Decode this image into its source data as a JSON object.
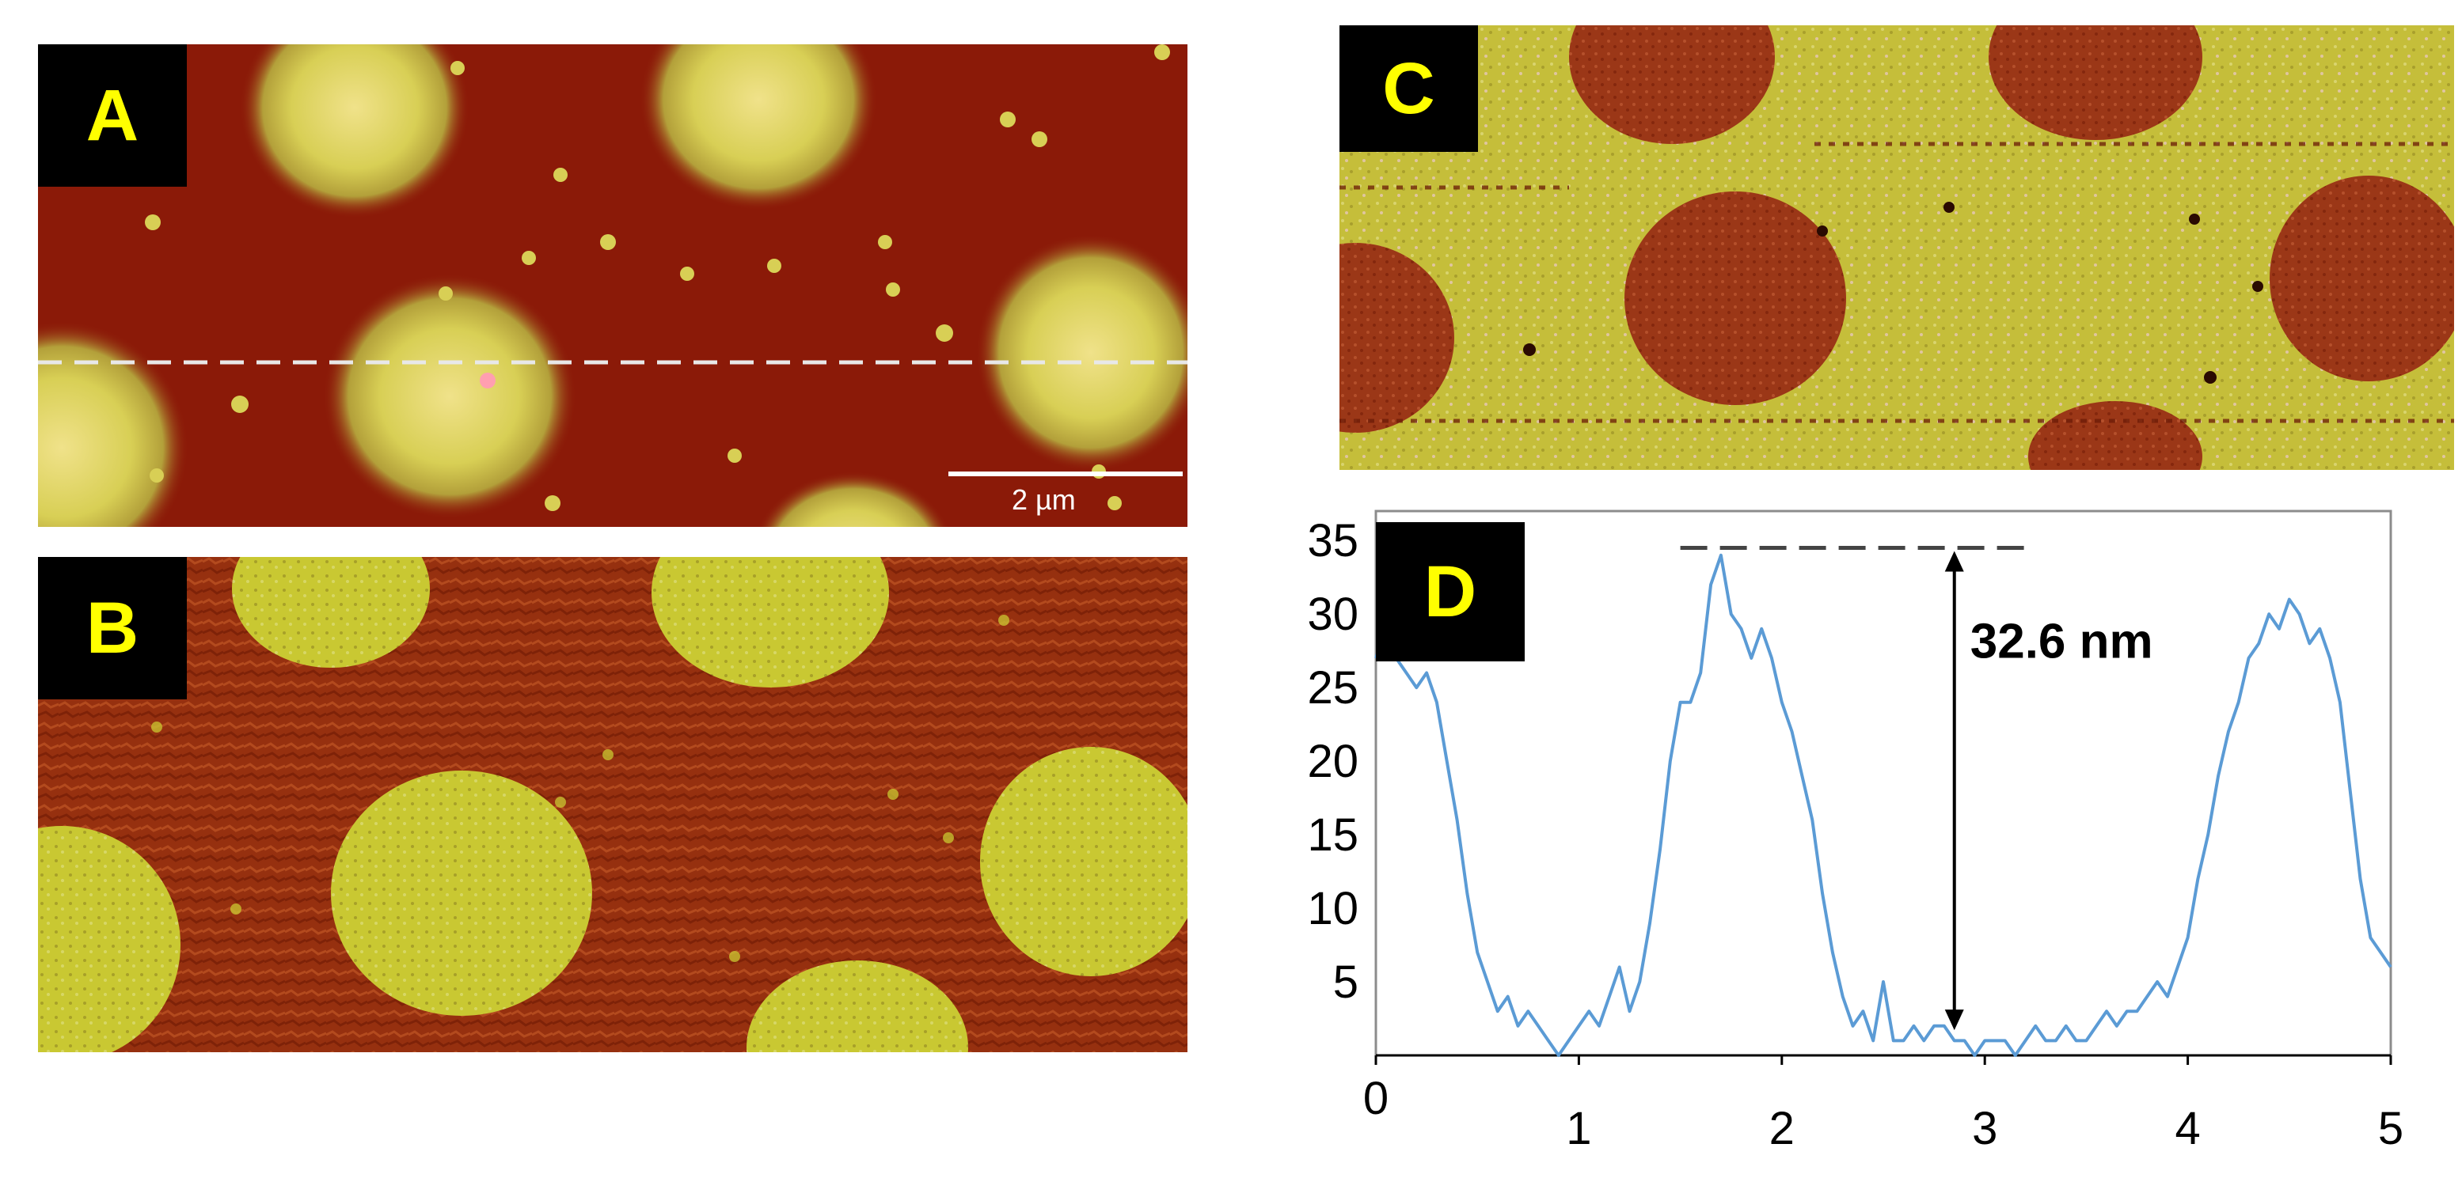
{
  "figure": {
    "panels": {
      "A": {
        "label": "A",
        "scale_bar": "2 µm"
      },
      "B": {
        "label": "B"
      },
      "C": {
        "label": "C"
      },
      "D": {
        "label": "D"
      }
    },
    "colors": {
      "substrate_dark": "#8b1a08",
      "domain_yellow": "#c9c832",
      "phase_dark": "#96300f",
      "line_blue": "#5b9bd5",
      "label_text": "#ffff00"
    }
  },
  "chart_data": {
    "type": "line",
    "title": "",
    "xlabel": "",
    "ylabel": "",
    "xlim": [
      0,
      5
    ],
    "ylim": [
      0,
      37
    ],
    "xticks": [
      0,
      1,
      2,
      3,
      4,
      5
    ],
    "yticks": [
      5,
      10,
      15,
      20,
      25,
      30,
      35
    ],
    "grid": false,
    "annotation": {
      "text": "32.6 nm",
      "top_value": 34.5,
      "bottom_value": 1.5,
      "x": 2.85
    },
    "series": [
      {
        "color": "#5b9bd5",
        "x": [
          0,
          0.05,
          0.1,
          0.15,
          0.2,
          0.25,
          0.3,
          0.35,
          0.4,
          0.45,
          0.5,
          0.55,
          0.6,
          0.65,
          0.7,
          0.75,
          0.8,
          0.85,
          0.9,
          0.95,
          1.0,
          1.05,
          1.1,
          1.15,
          1.2,
          1.25,
          1.3,
          1.35,
          1.4,
          1.45,
          1.5,
          1.55,
          1.6,
          1.65,
          1.7,
          1.75,
          1.8,
          1.85,
          1.9,
          1.95,
          2.0,
          2.05,
          2.1,
          2.15,
          2.2,
          2.25,
          2.3,
          2.35,
          2.4,
          2.45,
          2.5,
          2.55,
          2.6,
          2.65,
          2.7,
          2.75,
          2.8,
          2.85,
          2.9,
          2.95,
          3.0,
          3.05,
          3.1,
          3.15,
          3.2,
          3.25,
          3.3,
          3.35,
          3.4,
          3.45,
          3.5,
          3.55,
          3.6,
          3.65,
          3.7,
          3.75,
          3.8,
          3.85,
          3.9,
          3.95,
          4.0,
          4.05,
          4.1,
          4.15,
          4.2,
          4.25,
          4.3,
          4.35,
          4.4,
          4.45,
          4.5,
          4.55,
          4.6,
          4.65,
          4.7,
          4.75,
          4.8,
          4.85,
          4.9,
          4.95,
          5.0
        ],
        "y": [
          27,
          29,
          27,
          26,
          25,
          26,
          24,
          20,
          16,
          11,
          7,
          5,
          3,
          4,
          2,
          3,
          2,
          1,
          0,
          1,
          2,
          3,
          2,
          4,
          6,
          3,
          5,
          9,
          14,
          20,
          24,
          24,
          26,
          32,
          34,
          30,
          29,
          27,
          29,
          27,
          24,
          22,
          19,
          16,
          11,
          7,
          4,
          2,
          3,
          1,
          5,
          1,
          1,
          2,
          1,
          2,
          2,
          1,
          1,
          0,
          1,
          1,
          1,
          0,
          1,
          2,
          1,
          1,
          2,
          1,
          1,
          2,
          3,
          2,
          3,
          3,
          4,
          5,
          4,
          6,
          8,
          12,
          15,
          19,
          22,
          24,
          27,
          28,
          30,
          29,
          31,
          30,
          28,
          29,
          27,
          24,
          18,
          12,
          8,
          7,
          6
        ]
      }
    ]
  }
}
